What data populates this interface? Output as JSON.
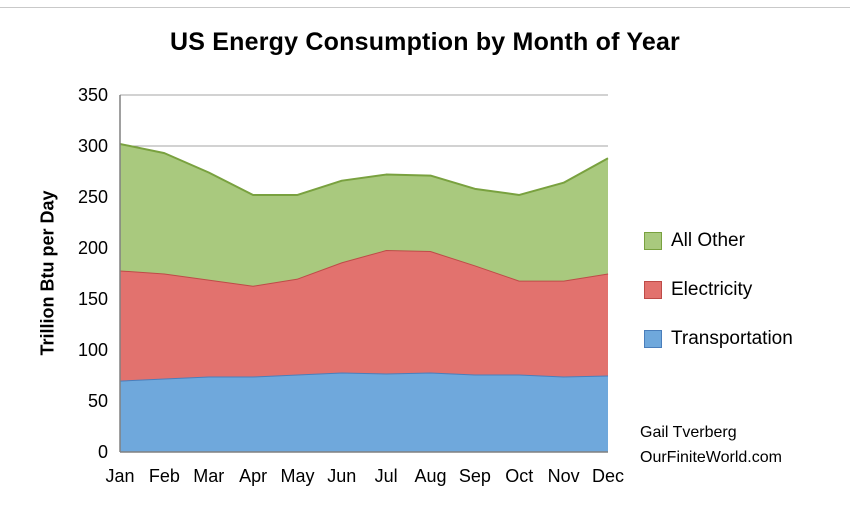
{
  "chart_data": {
    "type": "area",
    "stacked": true,
    "title": "US Energy Consumption by Month of Year",
    "xlabel": "",
    "ylabel": "Trillion Btu per Day",
    "ylim": [
      0,
      350
    ],
    "ytick_step": 50,
    "grid": true,
    "legend_position": "right",
    "legend_order": [
      "All Other",
      "Electricity",
      "Transportation"
    ],
    "categories": [
      "Jan",
      "Feb",
      "Mar",
      "Apr",
      "May",
      "Jun",
      "Jul",
      "Aug",
      "Sep",
      "Oct",
      "Nov",
      "Dec"
    ],
    "series": [
      {
        "name": "Transportation",
        "color": "#6fa8dc",
        "stroke": "#4a7ebb",
        "values": [
          70,
          72,
          74,
          74,
          76,
          78,
          77,
          78,
          76,
          76,
          74,
          75
        ]
      },
      {
        "name": "Electricity",
        "color": "#e2726e",
        "stroke": "#be4b48",
        "values": [
          108,
          103,
          95,
          89,
          94,
          108,
          121,
          119,
          107,
          92,
          94,
          100
        ]
      },
      {
        "name": "All Other",
        "color": "#a9c97e",
        "stroke": "#79a13f",
        "values": [
          124,
          118,
          105,
          89,
          82,
          80,
          74,
          74,
          75,
          84,
          96,
          113
        ]
      }
    ],
    "axis_color": "#808080",
    "gridline_color": "#a6a6a6"
  },
  "attribution": {
    "line1": "Gail Tverberg",
    "line2": "OurFiniteWorld.com"
  }
}
